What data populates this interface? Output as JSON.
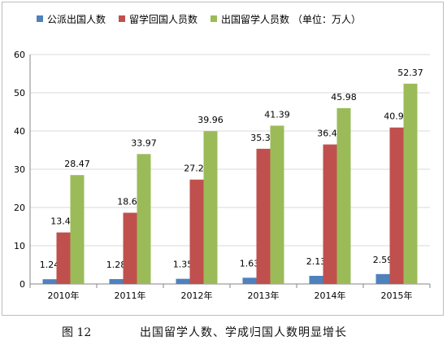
{
  "chart_data": {
    "type": "bar",
    "categories": [
      "2010年",
      "2011年",
      "2012年",
      "2013年",
      "2014年",
      "2015年"
    ],
    "series": [
      {
        "name": "公派出国人数",
        "color": "#4F81BD",
        "values": [
          1.24,
          1.28,
          1.35,
          1.63,
          2.13,
          2.59
        ]
      },
      {
        "name": "留学回国人员数",
        "color": "#C0504D",
        "values": [
          13.48,
          18.62,
          27.29,
          35.35,
          36.48,
          40.91
        ]
      },
      {
        "name": "出国留学人员数",
        "color": "#9BBB59",
        "values": [
          28.47,
          33.97,
          39.96,
          41.39,
          45.98,
          52.37
        ]
      }
    ],
    "unit_note": "（单位：万人）",
    "ylim": [
      0,
      60
    ],
    "yticks": [
      0,
      10,
      20,
      30,
      40,
      50,
      60
    ],
    "grid": true,
    "legend_position": "top"
  },
  "caption": {
    "figure_label": "图 12",
    "title": "出国留学人数、学成归国人数明显增长"
  }
}
